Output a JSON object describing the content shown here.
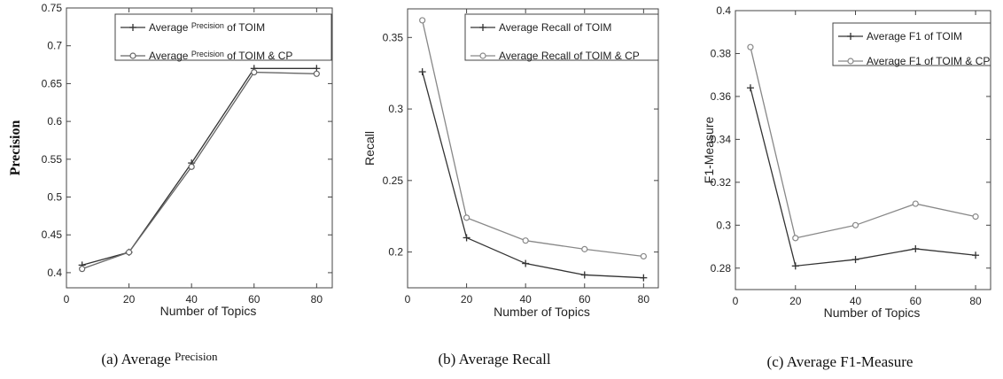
{
  "chart_data": [
    {
      "type": "line",
      "caption": "(a) Average ",
      "caption_small": "Precision",
      "xlabel": "Number of Topics",
      "ylabel": "Precision",
      "xlim": [
        0,
        85
      ],
      "ylim": [
        0.38,
        0.75
      ],
      "xticks": [
        0,
        20,
        40,
        60,
        80
      ],
      "yticks": [
        0.4,
        0.45,
        0.5,
        0.55,
        0.6,
        0.65,
        0.7,
        0.75
      ],
      "tick_labels_x": [
        "0",
        "20",
        "40",
        "60",
        "80"
      ],
      "tick_labels_y": [
        "0.4",
        "0.45",
        "0.5",
        "0.55",
        "0.6",
        "0.65",
        "0.7",
        "0.75"
      ],
      "legend_position": "top-right",
      "series": [
        {
          "name": "Average Precision of TOIM",
          "name_parts": [
            "Average ",
            "Precision",
            " of TOIM"
          ],
          "marker": "plus",
          "color": "#333333",
          "x": [
            5,
            20,
            40,
            60,
            80
          ],
          "y": [
            0.41,
            0.427,
            0.545,
            0.67,
            0.67
          ]
        },
        {
          "name": "Average Precision of TOIM & CP",
          "name_parts": [
            "Average ",
            "Precision",
            " of TOIM & CP"
          ],
          "marker": "circle",
          "color": "#666666",
          "x": [
            5,
            20,
            40,
            60,
            80
          ],
          "y": [
            0.405,
            0.427,
            0.54,
            0.665,
            0.663
          ]
        }
      ]
    },
    {
      "type": "line",
      "caption": "(b) Average Recall",
      "xlabel": "Number of Topics",
      "ylabel": "Recall",
      "xlim": [
        0,
        85
      ],
      "ylim": [
        0.175,
        0.37
      ],
      "xticks": [
        0,
        20,
        40,
        60,
        80
      ],
      "yticks": [
        0.2,
        0.25,
        0.3,
        0.35
      ],
      "tick_labels_x": [
        "0",
        "20",
        "40",
        "60",
        "80"
      ],
      "tick_labels_y": [
        "0.2",
        "0.25",
        "0.3",
        "0.35"
      ],
      "legend_position": "top-right",
      "series": [
        {
          "name": "Average Recall of TOIM",
          "marker": "plus",
          "color": "#333333",
          "x": [
            5,
            20,
            40,
            60,
            80
          ],
          "y": [
            0.326,
            0.21,
            0.192,
            0.184,
            0.182
          ]
        },
        {
          "name": "Average Recall of TOIM & CP",
          "marker": "circle",
          "color": "#888888",
          "x": [
            5,
            20,
            40,
            60,
            80
          ],
          "y": [
            0.362,
            0.224,
            0.208,
            0.202,
            0.197
          ]
        }
      ]
    },
    {
      "type": "line",
      "caption": "(c) Average F1-Measure",
      "xlabel": "Number of Topics",
      "ylabel": "F1-Measure",
      "xlim": [
        0,
        85
      ],
      "ylim": [
        0.27,
        0.4
      ],
      "xticks": [
        0,
        20,
        40,
        60,
        80
      ],
      "yticks": [
        0.28,
        0.3,
        0.32,
        0.34,
        0.36,
        0.38,
        0.4
      ],
      "tick_labels_x": [
        "0",
        "20",
        "40",
        "60",
        "80"
      ],
      "tick_labels_y": [
        "0.28",
        "0.3",
        "0.32",
        "0.34",
        "0.36",
        "0.38",
        "0.4"
      ],
      "legend_position": "top-right",
      "series": [
        {
          "name": "Average F1 of TOIM",
          "marker": "plus",
          "color": "#333333",
          "x": [
            5,
            20,
            40,
            60,
            80
          ],
          "y": [
            0.364,
            0.281,
            0.284,
            0.289,
            0.286
          ]
        },
        {
          "name": "Average F1 of TOIM & CP",
          "marker": "circle",
          "color": "#888888",
          "x": [
            5,
            20,
            40,
            60,
            80
          ],
          "y": [
            0.383,
            0.294,
            0.3,
            0.31,
            0.304
          ]
        }
      ]
    }
  ]
}
